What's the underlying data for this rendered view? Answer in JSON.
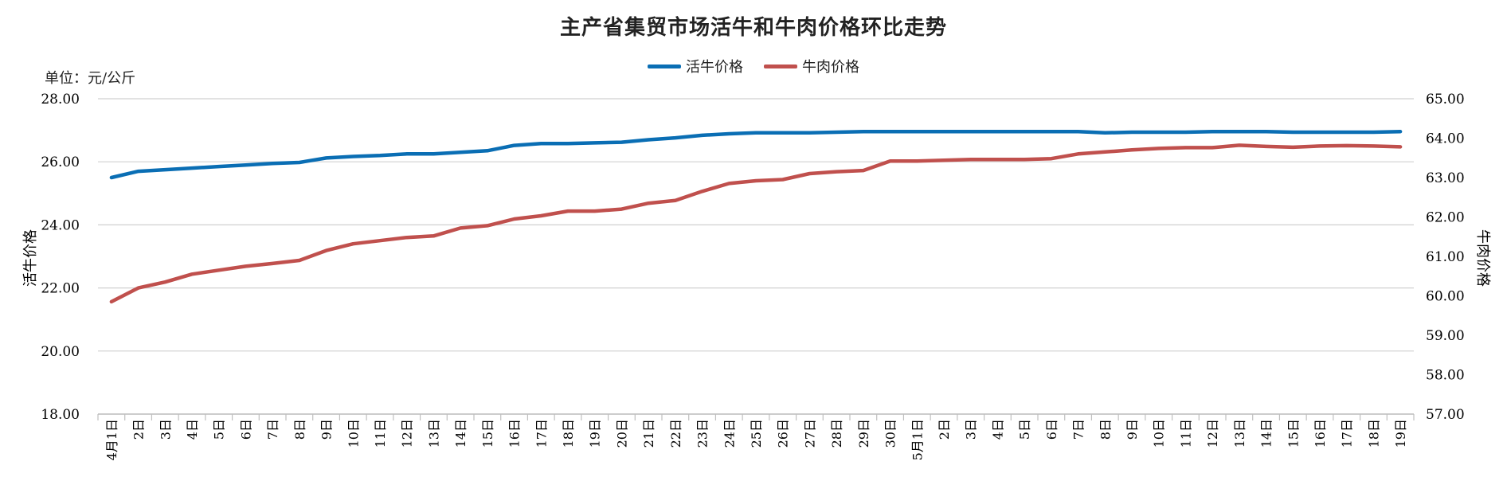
{
  "chart_data": {
    "type": "line",
    "title": "主产省集贸市场活牛和牛肉价格环比走势",
    "unit": "单位：元/公斤",
    "ylabel_left": "活牛价格",
    "ylabel_right": "牛肉价格",
    "ylim_left": [
      18,
      28
    ],
    "ylim_right": [
      57,
      65
    ],
    "yticks_left": [
      "18.00",
      "20.00",
      "22.00",
      "24.00",
      "26.00",
      "28.00"
    ],
    "yticks_right": [
      "57.00",
      "58.00",
      "59.00",
      "60.00",
      "61.00",
      "62.00",
      "63.00",
      "64.00",
      "65.00"
    ],
    "grid": true,
    "legend_position": "top-center",
    "categories": [
      "4月1日",
      "2日",
      "3日",
      "4日",
      "5日",
      "6日",
      "7日",
      "8日",
      "9日",
      "10日",
      "11日",
      "12日",
      "13日",
      "14日",
      "15日",
      "16日",
      "17日",
      "18日",
      "19日",
      "20日",
      "21日",
      "22日",
      "23日",
      "24日",
      "25日",
      "26日",
      "27日",
      "28日",
      "29日",
      "30日",
      "5月1日",
      "2日",
      "3日",
      "4日",
      "5日",
      "6日",
      "7日",
      "8日",
      "9日",
      "10日",
      "11日",
      "12日",
      "13日",
      "14日",
      "15日",
      "16日",
      "17日",
      "18日",
      "19日"
    ],
    "series": [
      {
        "name": "活牛价格",
        "axis": "left",
        "color": "#0a6eb4",
        "values": [
          25.5,
          25.7,
          25.75,
          25.8,
          25.85,
          25.9,
          25.95,
          25.98,
          26.12,
          26.17,
          26.2,
          26.25,
          26.25,
          26.3,
          26.35,
          26.52,
          26.58,
          26.58,
          26.6,
          26.62,
          26.7,
          26.76,
          26.84,
          26.89,
          26.92,
          26.92,
          26.92,
          26.94,
          26.96,
          26.96,
          26.96,
          26.96,
          26.96,
          26.96,
          26.96,
          26.96,
          26.96,
          26.92,
          26.94,
          26.94,
          26.94,
          26.96,
          26.96,
          26.96,
          26.94,
          26.94,
          26.94,
          26.94,
          26.96
        ]
      },
      {
        "name": "牛肉价格",
        "axis": "right",
        "color": "#c0504d",
        "values": [
          59.85,
          60.2,
          60.35,
          60.55,
          60.65,
          60.75,
          60.82,
          60.9,
          61.15,
          61.32,
          61.4,
          61.48,
          61.52,
          61.72,
          61.78,
          61.95,
          62.03,
          62.15,
          62.15,
          62.2,
          62.35,
          62.42,
          62.65,
          62.85,
          62.92,
          62.95,
          63.1,
          63.15,
          63.18,
          63.42,
          63.42,
          63.44,
          63.46,
          63.46,
          63.46,
          63.48,
          63.6,
          63.65,
          63.7,
          63.74,
          63.76,
          63.76,
          63.82,
          63.79,
          63.77,
          63.8,
          63.81,
          63.8,
          63.78
        ]
      }
    ]
  }
}
